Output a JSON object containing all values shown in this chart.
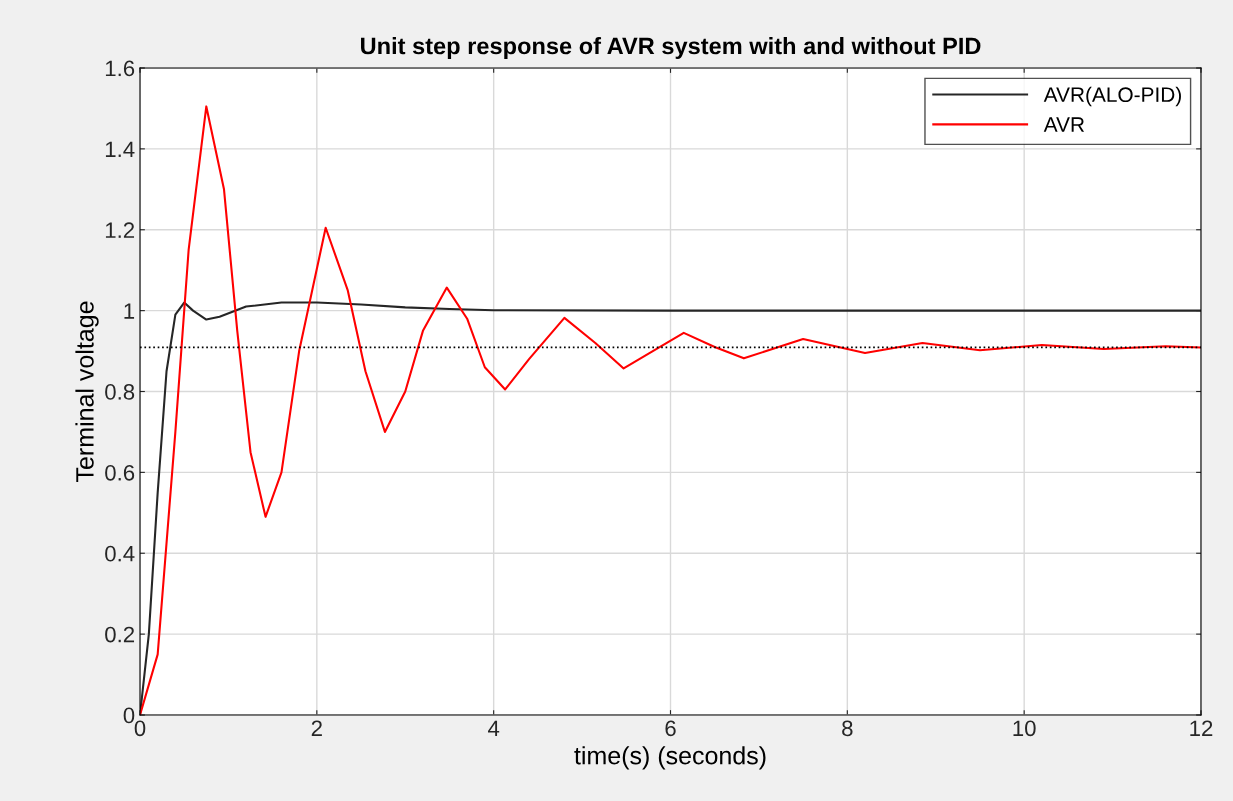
{
  "chart_data": {
    "type": "line",
    "title": "Unit step response of AVR system with and without PID",
    "xlabel": "time(s) (seconds)",
    "ylabel": "Terminal voltage",
    "xlim": [
      0,
      12
    ],
    "ylim": [
      0,
      1.6
    ],
    "xticks": [
      0,
      2,
      4,
      6,
      8,
      10,
      12
    ],
    "yticks": [
      0,
      0.2,
      0.4,
      0.6,
      0.8,
      1,
      1.2,
      1.4,
      1.6
    ],
    "grid": true,
    "legend": "top right",
    "line_style": "solid",
    "marker": "none",
    "series": [
      {
        "name": "AVR(ALO-PID)",
        "color": "#262626",
        "x": [
          0,
          0.1,
          0.2,
          0.3,
          0.4,
          0.5,
          0.6,
          0.75,
          0.9,
          1.2,
          1.6,
          2.0,
          2.5,
          3,
          3.5,
          4,
          6,
          12
        ],
        "values": [
          0,
          0.2,
          0.55,
          0.85,
          0.99,
          1.02,
          1.0,
          0.978,
          0.985,
          1.01,
          1.02,
          1.02,
          1.015,
          1.008,
          1.004,
          1.001,
          1.0,
          1.0
        ]
      },
      {
        "name": "AVR",
        "color": "#ff0000",
        "x": [
          0,
          0.2,
          0.4,
          0.55,
          0.75,
          0.95,
          1.1,
          1.25,
          1.42,
          1.6,
          1.8,
          2.1,
          2.35,
          2.55,
          2.77,
          3.0,
          3.2,
          3.47,
          3.7,
          3.9,
          4.13,
          4.4,
          4.8,
          5.15,
          5.47,
          5.8,
          6.15,
          6.5,
          6.83,
          7.5,
          8.2,
          8.85,
          9.5,
          10.2,
          10.9,
          11.6,
          12
        ],
        "values": [
          0,
          0.15,
          0.7,
          1.15,
          1.505,
          1.3,
          0.95,
          0.65,
          0.49,
          0.6,
          0.9,
          1.205,
          1.05,
          0.85,
          0.7,
          0.8,
          0.95,
          1.057,
          0.98,
          0.86,
          0.805,
          0.88,
          0.982,
          0.92,
          0.857,
          0.9,
          0.945,
          0.91,
          0.882,
          0.93,
          0.895,
          0.92,
          0.902,
          0.915,
          0.905,
          0.912,
          0.909
        ]
      }
    ],
    "ref_lines": [
      {
        "axis": "y",
        "value": 0.909,
        "color": "#000000",
        "line_style": "dotted"
      }
    ]
  }
}
